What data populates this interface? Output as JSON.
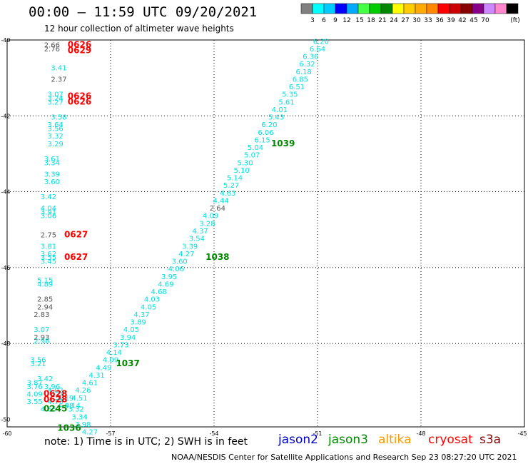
{
  "header": {
    "title": "00:00 – 11:59 UTC 09/20/2021",
    "subtitle": "12 hour collection of altimeter wave heights"
  },
  "legend": {
    "colors": [
      "#808080",
      "#00ffff",
      "#00ccff",
      "#0000ff",
      "#00aaff",
      "#44ff44",
      "#00cc00",
      "#008800",
      "#ffff00",
      "#ffcc00",
      "#ffaa00",
      "#ff8800",
      "#ff0000",
      "#cc0000",
      "#880000",
      "#880088",
      "#cc88ff",
      "#ff88cc",
      "#000000"
    ],
    "labels": [
      "3",
      "6",
      "9",
      "12",
      "15",
      "18",
      "21",
      "24",
      "27",
      "30",
      "33",
      "36",
      "39",
      "42",
      "45",
      "70",
      "(ft)"
    ]
  },
  "axes": {
    "lat_labels": [
      "-40",
      "-42",
      "-44",
      "-46",
      "-48",
      "-50"
    ],
    "lon_labels": [
      "-60",
      "-57",
      "-54",
      "-51",
      "-48",
      "-45"
    ]
  },
  "footer": {
    "note": "note: 1) Time is in UTC; 2) SWH is in feet",
    "credit": "NOAA/NESDIS Center for Satellite Applications and Research   Sep 23 08:27:20 UTC 2021",
    "satellites": [
      {
        "name": "jason2",
        "color": "#0000cc"
      },
      {
        "name": "jason3",
        "color": "#008800"
      },
      {
        "name": "altika",
        "color": "#ff9900"
      },
      {
        "name": "cryosat",
        "color": "#ff0000"
      },
      {
        "name": "s3a",
        "color": "#880000"
      }
    ]
  },
  "map_colors": {
    "cyan": "#00e0e0",
    "gray": "#555555",
    "red": "#ff0000",
    "green": "#008800"
  },
  "map_data": {
    "track_east": [
      {
        "lon": -50.9,
        "lat": -40.1,
        "v": "6.20"
      },
      {
        "lon": -51.0,
        "lat": -40.3,
        "v": "6.64"
      },
      {
        "lon": -51.2,
        "lat": -40.5,
        "v": "6.36"
      },
      {
        "lon": -51.3,
        "lat": -40.7,
        "v": "6.32"
      },
      {
        "lon": -51.4,
        "lat": -40.9,
        "v": "6.18"
      },
      {
        "lon": -51.5,
        "lat": -41.1,
        "v": "6.85"
      },
      {
        "lon": -51.6,
        "lat": -41.3,
        "v": "6.51"
      },
      {
        "lon": -51.8,
        "lat": -41.5,
        "v": "5.35"
      },
      {
        "lon": -51.9,
        "lat": -41.7,
        "v": "5.61"
      },
      {
        "lon": -52.1,
        "lat": -41.9,
        "v": "4.01"
      },
      {
        "lon": -52.2,
        "lat": -42.1,
        "v": "5.43"
      },
      {
        "lon": -52.4,
        "lat": -42.3,
        "v": "6.20"
      },
      {
        "lon": -52.5,
        "lat": -42.5,
        "v": "6.06"
      },
      {
        "lon": -52.6,
        "lat": -42.7,
        "v": "6.15"
      },
      {
        "lon": -52.8,
        "lat": -42.9,
        "v": "5.04"
      },
      {
        "lon": -52.9,
        "lat": -43.1,
        "v": "5.07"
      },
      {
        "lon": -53.1,
        "lat": -43.3,
        "v": "5.30"
      },
      {
        "lon": -53.2,
        "lat": -43.5,
        "v": "5.10"
      },
      {
        "lon": -53.4,
        "lat": -43.7,
        "v": "5.14"
      },
      {
        "lon": -53.5,
        "lat": -43.9,
        "v": "5.27"
      },
      {
        "lon": -53.6,
        "lat": -44.1,
        "v": "4.63"
      },
      {
        "lon": -53.8,
        "lat": -44.3,
        "v": "4.44"
      },
      {
        "lon": -53.9,
        "lat": -44.5,
        "v": "2.64"
      },
      {
        "lon": -54.1,
        "lat": -44.7,
        "v": "4.09"
      },
      {
        "lon": -54.2,
        "lat": -44.9,
        "v": "3.28"
      },
      {
        "lon": -54.4,
        "lat": -45.1,
        "v": "4.37"
      },
      {
        "lon": -54.5,
        "lat": -45.3,
        "v": "3.54"
      },
      {
        "lon": -54.7,
        "lat": -45.5,
        "v": "3.39"
      },
      {
        "lon": -54.8,
        "lat": -45.7,
        "v": "4.27"
      },
      {
        "lon": -55.0,
        "lat": -45.9,
        "v": "3.60"
      },
      {
        "lon": -55.1,
        "lat": -46.1,
        "v": "4.06"
      },
      {
        "lon": -55.3,
        "lat": -46.3,
        "v": "3.95"
      },
      {
        "lon": -55.4,
        "lat": -46.5,
        "v": "4.69"
      },
      {
        "lon": -55.6,
        "lat": -46.7,
        "v": "4.68"
      },
      {
        "lon": -55.8,
        "lat": -46.9,
        "v": "4.03"
      },
      {
        "lon": -55.9,
        "lat": -47.1,
        "v": "4.05"
      },
      {
        "lon": -56.1,
        "lat": -47.3,
        "v": "4.37"
      },
      {
        "lon": -56.2,
        "lat": -47.5,
        "v": "3.89"
      },
      {
        "lon": -56.4,
        "lat": -47.7,
        "v": "4.05"
      },
      {
        "lon": -56.5,
        "lat": -47.9,
        "v": "3.94"
      },
      {
        "lon": -56.7,
        "lat": -48.1,
        "v": "3.73"
      },
      {
        "lon": -56.9,
        "lat": -48.3,
        "v": "4.14"
      },
      {
        "lon": -57.0,
        "lat": -48.5,
        "v": "4.09"
      },
      {
        "lon": -57.2,
        "lat": -48.7,
        "v": "4.49"
      },
      {
        "lon": -57.4,
        "lat": -48.9,
        "v": "4.31"
      },
      {
        "lon": -57.6,
        "lat": -49.1,
        "v": "4.61"
      },
      {
        "lon": -57.8,
        "lat": -49.3,
        "v": "4.26"
      },
      {
        "lon": -57.9,
        "lat": -49.5,
        "v": "4.51"
      },
      {
        "lon": -58.1,
        "lat": -49.7,
        "v": "4.14"
      }
    ],
    "track_south": [
      {
        "lon": -58.9,
        "lat": -49.0,
        "v": "3.42"
      },
      {
        "lon": -58.7,
        "lat": -49.2,
        "v": "3.96"
      },
      {
        "lon": -58.6,
        "lat": -49.3,
        "v": "4.02"
      },
      {
        "lon": -58.5,
        "lat": -49.4,
        "v": "4.06"
      },
      {
        "lon": -58.3,
        "lat": -49.5,
        "v": "4.19"
      },
      {
        "lon": -58.6,
        "lat": -49.6,
        "v": "4.73"
      },
      {
        "lon": -58.3,
        "lat": -49.7,
        "v": "4.98"
      },
      {
        "lon": -58.8,
        "lat": -49.8,
        "v": "4.65"
      },
      {
        "lon": -58.0,
        "lat": -49.8,
        "v": "3.32"
      },
      {
        "lon": -57.9,
        "lat": -50.0,
        "v": "3.34"
      },
      {
        "lon": -57.8,
        "lat": -50.2,
        "v": "3.98"
      },
      {
        "lon": -57.6,
        "lat": -50.4,
        "v": "4.27"
      }
    ],
    "track_west": [
      {
        "lon": -58.7,
        "lat": -40.2,
        "v": "2.66",
        "c": "gray"
      },
      {
        "lon": -58.7,
        "lat": -40.3,
        "v": "2.76",
        "c": "gray"
      },
      {
        "lon": -58.5,
        "lat": -40.8,
        "v": "3.41",
        "c": "cyan"
      },
      {
        "lon": -58.5,
        "lat": -41.1,
        "v": "2.37",
        "c": "gray"
      },
      {
        "lon": -58.6,
        "lat": -41.5,
        "v": "3.07",
        "c": "cyan"
      },
      {
        "lon": -58.6,
        "lat": -41.6,
        "v": "3.24",
        "c": "cyan"
      },
      {
        "lon": -58.6,
        "lat": -41.7,
        "v": "3.27",
        "c": "cyan"
      },
      {
        "lon": -58.5,
        "lat": -42.1,
        "v": "3.58",
        "c": "cyan"
      },
      {
        "lon": -58.6,
        "lat": -42.3,
        "v": "3.64",
        "c": "cyan"
      },
      {
        "lon": -58.6,
        "lat": -42.4,
        "v": "3.56",
        "c": "cyan"
      },
      {
        "lon": -58.6,
        "lat": -42.6,
        "v": "3.32",
        "c": "cyan"
      },
      {
        "lon": -58.6,
        "lat": -42.8,
        "v": "3.29",
        "c": "cyan"
      },
      {
        "lon": -58.7,
        "lat": -43.2,
        "v": "3.61",
        "c": "cyan"
      },
      {
        "lon": -58.7,
        "lat": -43.3,
        "v": "3.34",
        "c": "cyan"
      },
      {
        "lon": -58.7,
        "lat": -43.6,
        "v": "3.39",
        "c": "cyan"
      },
      {
        "lon": -58.7,
        "lat": -43.8,
        "v": "3.60",
        "c": "cyan"
      },
      {
        "lon": -58.8,
        "lat": -44.2,
        "v": "3.42",
        "c": "cyan"
      },
      {
        "lon": -58.8,
        "lat": -44.5,
        "v": "4.04",
        "c": "cyan"
      },
      {
        "lon": -58.8,
        "lat": -44.6,
        "v": "3.91",
        "c": "cyan"
      },
      {
        "lon": -58.8,
        "lat": -44.7,
        "v": "3.06",
        "c": "cyan"
      },
      {
        "lon": -58.8,
        "lat": -45.2,
        "v": "2.75",
        "c": "gray"
      },
      {
        "lon": -58.8,
        "lat": -45.5,
        "v": "3.81",
        "c": "cyan"
      },
      {
        "lon": -58.8,
        "lat": -45.7,
        "v": "3.62",
        "c": "cyan"
      },
      {
        "lon": -58.8,
        "lat": -45.8,
        "v": "3.55",
        "c": "cyan"
      },
      {
        "lon": -58.8,
        "lat": -45.9,
        "v": "3.45",
        "c": "cyan"
      },
      {
        "lon": -58.9,
        "lat": -46.4,
        "v": "5.15",
        "c": "cyan"
      },
      {
        "lon": -58.9,
        "lat": -46.5,
        "v": "4.89",
        "c": "cyan"
      },
      {
        "lon": -58.9,
        "lat": -46.9,
        "v": "2.85",
        "c": "gray"
      },
      {
        "lon": -58.9,
        "lat": -47.1,
        "v": "2.94",
        "c": "gray"
      },
      {
        "lon": -59.0,
        "lat": -47.3,
        "v": "2.83",
        "c": "gray"
      },
      {
        "lon": -59.0,
        "lat": -47.7,
        "v": "3.07",
        "c": "cyan"
      },
      {
        "lon": -59.0,
        "lat": -47.9,
        "v": "2.93",
        "c": "gray"
      },
      {
        "lon": -59.0,
        "lat": -48.0,
        "v": "2.98",
        "c": "cyan"
      },
      {
        "lon": -59.1,
        "lat": -48.5,
        "v": "3.56",
        "c": "cyan"
      },
      {
        "lon": -59.1,
        "lat": -48.6,
        "v": "3.21",
        "c": "cyan"
      },
      {
        "lon": -59.2,
        "lat": -49.1,
        "v": "3.87",
        "c": "cyan"
      },
      {
        "lon": -59.2,
        "lat": -49.2,
        "v": "3.76",
        "c": "cyan"
      },
      {
        "lon": -59.2,
        "lat": -49.4,
        "v": "4.09",
        "c": "cyan"
      },
      {
        "lon": -59.2,
        "lat": -49.6,
        "v": "3.55",
        "c": "cyan"
      }
    ],
    "time_labels": [
      {
        "lon": -57.9,
        "lat": -40.2,
        "v": "0626",
        "c": "red"
      },
      {
        "lon": -57.9,
        "lat": -40.35,
        "v": "0629",
        "c": "red"
      },
      {
        "lon": -57.9,
        "lat": -41.55,
        "v": "0626",
        "c": "red"
      },
      {
        "lon": -57.9,
        "lat": -41.7,
        "v": "0626",
        "c": "red"
      },
      {
        "lon": -58.0,
        "lat": -45.2,
        "v": "0627",
        "c": "red"
      },
      {
        "lon": -58.0,
        "lat": -45.8,
        "v": "0627",
        "c": "red"
      },
      {
        "lon": -58.6,
        "lat": -49.4,
        "v": "0628",
        "c": "red"
      },
      {
        "lon": -58.6,
        "lat": -49.55,
        "v": "0628",
        "c": "red"
      },
      {
        "lon": -52.0,
        "lat": -42.8,
        "v": "1039",
        "c": "green"
      },
      {
        "lon": -53.9,
        "lat": -45.8,
        "v": "1038",
        "c": "green"
      },
      {
        "lon": -56.5,
        "lat": -48.6,
        "v": "1037",
        "c": "green"
      },
      {
        "lon": -58.6,
        "lat": -49.8,
        "v": "0245",
        "c": "green"
      },
      {
        "lon": -58.2,
        "lat": -50.3,
        "v": "1036",
        "c": "green"
      }
    ]
  }
}
